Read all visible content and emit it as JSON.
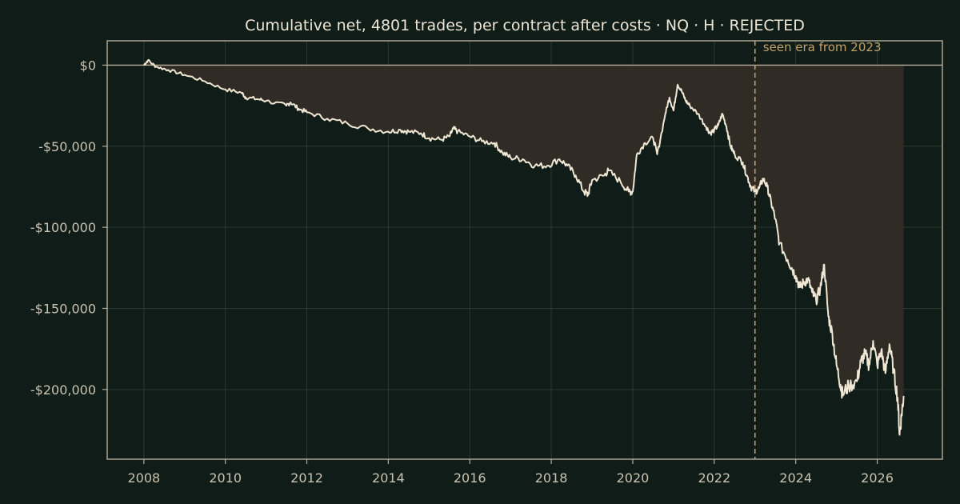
{
  "chart_data": {
    "type": "area",
    "title": "Cumulative net, 4801 trades, per contract after costs  ·  NQ · H · REJECTED",
    "xlabel": "",
    "ylabel": "",
    "xlim": [
      2007.1,
      2027.6
    ],
    "ylim": [
      -243000,
      15000
    ],
    "grid": true,
    "x_ticks": [
      2008,
      2010,
      2012,
      2014,
      2016,
      2018,
      2020,
      2022,
      2024,
      2026
    ],
    "x_tick_labels": [
      "2008",
      "2010",
      "2012",
      "2014",
      "2016",
      "2018",
      "2020",
      "2022",
      "2024",
      "2026"
    ],
    "y_ticks": [
      0,
      -50000,
      -100000,
      -150000,
      -200000
    ],
    "y_tick_labels": [
      "$0",
      "-$50,000",
      "-$100,000",
      "-$150,000",
      "-$200,000"
    ],
    "baseline": 0,
    "annotation": {
      "label": "seen era from 2023",
      "x": 2023.0
    },
    "series": [
      {
        "x": [
          2008.0,
          2008.1,
          2008.3,
          2008.6,
          2009.0,
          2009.5,
          2010.0,
          2010.4,
          2010.5,
          2010.8,
          2011.0,
          2011.5,
          2011.6,
          2011.8,
          2012.0,
          2012.5,
          2013.0,
          2013.5,
          2014.0,
          2014.3,
          2014.5,
          2014.8,
          2015.0,
          2015.3,
          2015.5,
          2015.6,
          2015.7,
          2016.0,
          2016.3,
          2016.6,
          2016.8,
          2017.0,
          2017.3,
          2017.6,
          2017.9,
          2018.2,
          2018.4,
          2018.6,
          2018.8,
          2018.9,
          2019.0,
          2019.3,
          2019.4,
          2019.7,
          2019.9,
          2020.0,
          2020.1,
          2020.3,
          2020.5,
          2020.6,
          2020.8,
          2020.9,
          2021.0,
          2021.1,
          2021.2,
          2021.3,
          2021.4,
          2021.6,
          2021.8,
          2021.9,
          2022.0,
          2022.1,
          2022.2,
          2022.3,
          2022.4,
          2022.5,
          2022.7,
          2022.8,
          2022.9,
          2023.0,
          2023.1,
          2023.2,
          2023.3,
          2023.4,
          2023.5,
          2023.6,
          2023.8,
          2023.9,
          2024.0,
          2024.1,
          2024.2,
          2024.3,
          2024.4,
          2024.5,
          2024.6,
          2024.7,
          2024.8,
          2024.9,
          2025.0,
          2025.1,
          2025.15,
          2025.3,
          2025.5,
          2025.6,
          2025.7,
          2025.8,
          2025.9,
          2026.0,
          2026.1,
          2026.2,
          2026.3,
          2026.4,
          2026.5,
          2026.55,
          2026.6,
          2026.65
        ],
        "y": [
          0,
          3000,
          -1000,
          -3000,
          -6000,
          -10000,
          -15000,
          -17000,
          -20000,
          -21000,
          -22000,
          -25000,
          -23000,
          -27000,
          -29000,
          -33000,
          -36000,
          -39000,
          -41000,
          -40000,
          -41000,
          -42000,
          -45000,
          -46000,
          -44000,
          -39000,
          -41000,
          -44000,
          -47000,
          -48000,
          -54000,
          -57000,
          -58000,
          -62000,
          -62000,
          -58000,
          -62000,
          -68000,
          -78000,
          -80000,
          -71000,
          -68000,
          -65000,
          -72000,
          -78000,
          -78000,
          -55000,
          -48000,
          -45000,
          -55000,
          -30000,
          -20000,
          -28000,
          -12000,
          -16000,
          -22000,
          -25000,
          -30000,
          -38000,
          -42000,
          -40000,
          -37000,
          -30000,
          -38000,
          -50000,
          -55000,
          -60000,
          -68000,
          -75000,
          -78000,
          -76000,
          -70000,
          -75000,
          -85000,
          -95000,
          -110000,
          -120000,
          -125000,
          -130000,
          -137000,
          -134000,
          -132000,
          -140000,
          -145000,
          -138000,
          -123000,
          -155000,
          -166000,
          -185000,
          -197000,
          -203000,
          -198000,
          -195000,
          -183000,
          -178000,
          -185000,
          -170000,
          -185000,
          -176000,
          -190000,
          -172000,
          -188000,
          -205000,
          -228000,
          -215000,
          -204000
        ]
      }
    ],
    "colors": {
      "background": "#101c17",
      "line": "#efe6d3",
      "fill": "#332c26",
      "axis": "#b5ad99",
      "grid": "#2a3a32",
      "annotation": "#c2a06a"
    }
  }
}
